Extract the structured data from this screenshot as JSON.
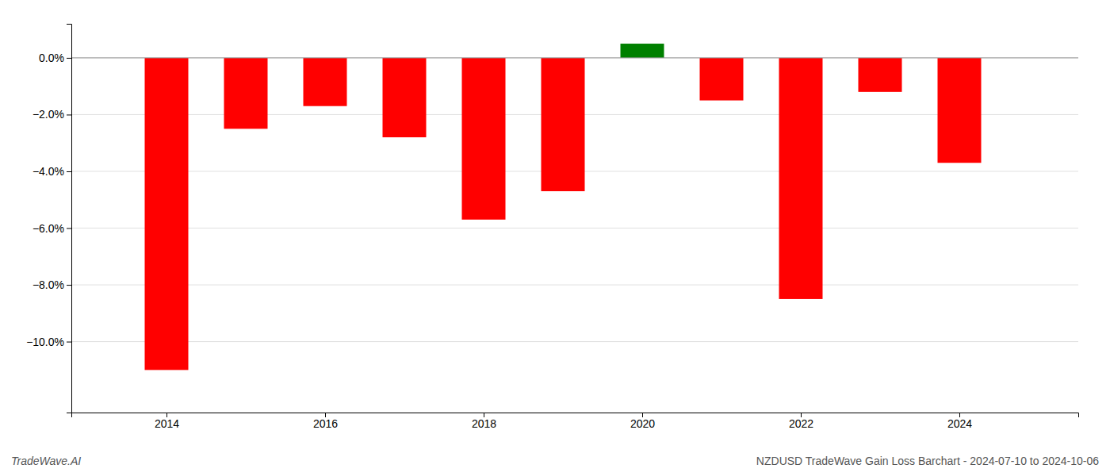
{
  "chart_data": {
    "type": "bar",
    "title": "NZDUSD TradeWave Gain Loss Barchart - 2024-07-10 to 2024-10-06",
    "subtitle": "TradeWave.AI",
    "x": [
      2014,
      2015,
      2016,
      2017,
      2018,
      2019,
      2020,
      2021,
      2022,
      2023,
      2024
    ],
    "values": [
      -11.0,
      -2.5,
      -1.7,
      -2.8,
      -5.7,
      -4.7,
      0.5,
      -1.5,
      -8.5,
      -1.2,
      -3.7
    ],
    "colors": [
      "#ff0000",
      "#ff0000",
      "#ff0000",
      "#ff0000",
      "#ff0000",
      "#ff0000",
      "#008000",
      "#ff0000",
      "#ff0000",
      "#ff0000",
      "#ff0000"
    ],
    "xlim": [
      2012.8,
      2025.5
    ],
    "xticks": [
      2014,
      2016,
      2018,
      2020,
      2022,
      2024
    ],
    "ylim": [
      -12.5,
      1.2
    ],
    "yticks": [
      {
        "value": 0.0,
        "label": "0.0%"
      },
      {
        "value": -2.0,
        "label": "−2.0%"
      },
      {
        "value": -4.0,
        "label": "−4.0%"
      },
      {
        "value": -6.0,
        "label": "−6.0%"
      },
      {
        "value": -8.0,
        "label": "−8.0%"
      },
      {
        "value": -10.0,
        "label": "−10.0%"
      }
    ],
    "grid": true
  }
}
